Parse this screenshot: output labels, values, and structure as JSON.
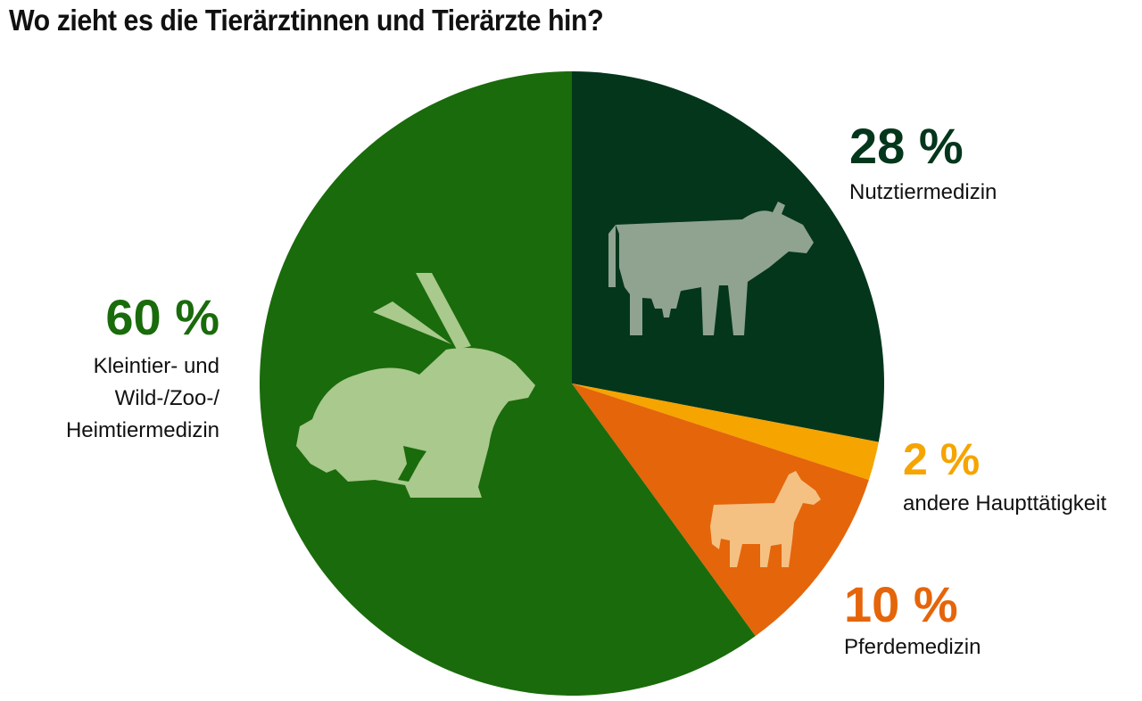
{
  "title": "Wo zieht es die Tierärztinnen und Tierärzte hin?",
  "colors": {
    "Nutztiermedizin": "#04361c",
    "andere Haupttätigkeit": "#f5a400",
    "Pferdemedizin": "#e5650a",
    "Kleintier": "#1a6b0b",
    "cow_icon": "#8fa390",
    "horse_icon": "#f5c183",
    "rabbit_icon": "#a9c98d"
  },
  "chart_data": {
    "type": "pie",
    "title": "Wo zieht es die Tierärztinnen und Tierärzte hin?",
    "start": "12 o'clock",
    "direction": "clockwise",
    "slices": [
      {
        "value": 28,
        "pct_label": "28 %",
        "label_lines": [
          "Nutztiermedizin"
        ],
        "color": "#04361c",
        "icon": "cow-icon"
      },
      {
        "value": 2,
        "pct_label": "2 %",
        "label_lines": [
          "andere Haupttätigkeit"
        ],
        "color": "#f5a400",
        "icon": ""
      },
      {
        "value": 10,
        "pct_label": "10 %",
        "label_lines": [
          "Pferdemedizin"
        ],
        "color": "#e5650a",
        "icon": "horse-icon"
      },
      {
        "value": 60,
        "pct_label": "60 %",
        "label_lines": [
          "Kleintier- und",
          "Wild-/Zoo-/",
          "Heimtiermedizin"
        ],
        "color": "#1a6b0b",
        "icon": "rabbit-icon"
      }
    ]
  }
}
